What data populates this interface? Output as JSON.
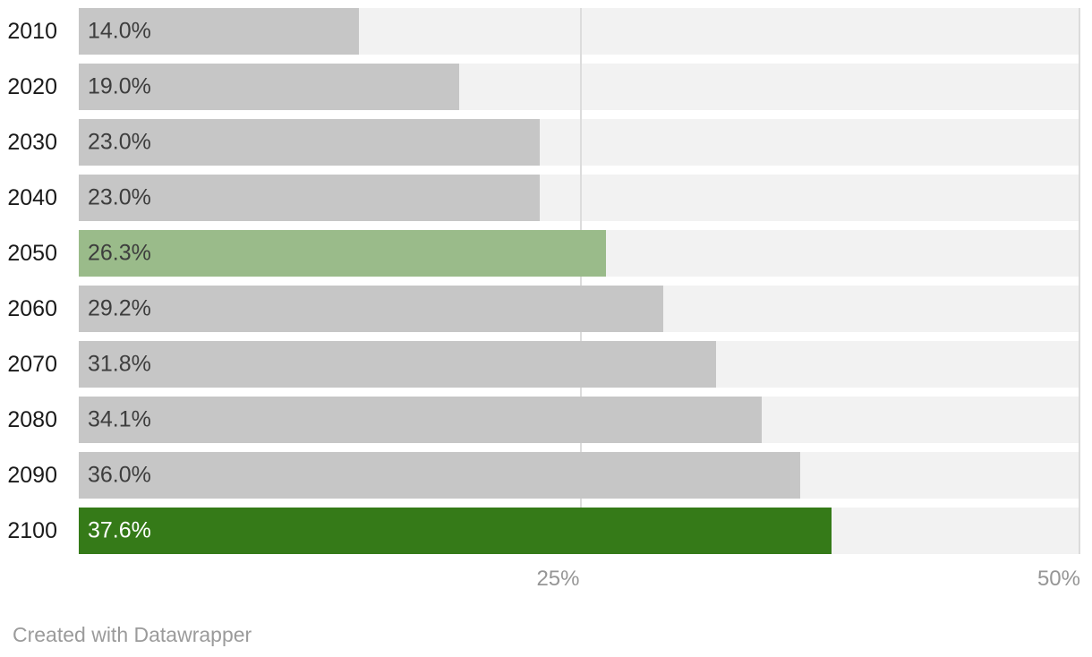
{
  "chart_data": {
    "type": "bar",
    "orientation": "horizontal",
    "title": "",
    "xlabel": "",
    "ylabel": "",
    "categories": [
      "2010",
      "2020",
      "2030",
      "2040",
      "2050",
      "2060",
      "2070",
      "2080",
      "2090",
      "2100"
    ],
    "values": [
      14.0,
      19.0,
      23.0,
      23.0,
      26.3,
      29.2,
      31.8,
      34.1,
      36.0,
      37.6
    ],
    "value_labels": [
      "14.0%",
      "19.0%",
      "23.0%",
      "23.0%",
      "26.3%",
      "29.2%",
      "31.8%",
      "34.1%",
      "36.0%",
      "37.6%"
    ],
    "xlim": [
      0,
      50
    ],
    "x_ticks": [
      {
        "value": 25,
        "label": "25%"
      },
      {
        "value": 50,
        "label": "50%"
      }
    ],
    "grid": true,
    "legend": false,
    "bar_colors": [
      "#c6c6c6",
      "#c6c6c6",
      "#c6c6c6",
      "#c6c6c6",
      "#9abb8a",
      "#c6c6c6",
      "#c6c6c6",
      "#c6c6c6",
      "#c6c6c6",
      "#357a18"
    ],
    "value_label_colors": [
      "#3d3d3d",
      "#3d3d3d",
      "#3d3d3d",
      "#3d3d3d",
      "#3d3d3d",
      "#3d3d3d",
      "#3d3d3d",
      "#3d3d3d",
      "#3d3d3d",
      "#ffffff"
    ],
    "highlighted_categories": [
      "2050",
      "2100"
    ]
  },
  "colors": {
    "bar_default": "#c6c6c6",
    "bar_highlight_mid": "#9abb8a",
    "bar_highlight_final": "#357a18",
    "track": "#f2f2f2",
    "gridline": "#dcdcdc",
    "year_text": "#1a1a1a",
    "value_text": "#3d3d3d",
    "tick_text": "#969696",
    "footer_text": "#9b9b9b"
  },
  "footer": {
    "credit": "Created with Datawrapper"
  }
}
